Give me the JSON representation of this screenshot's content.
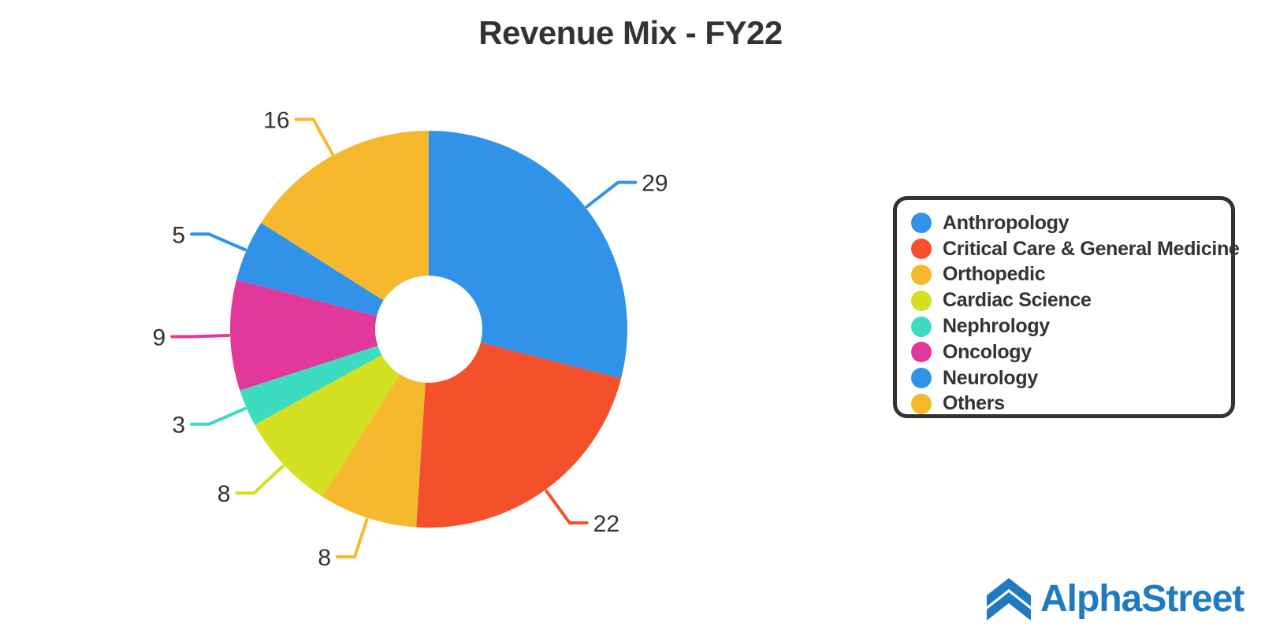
{
  "chart_data": {
    "type": "pie",
    "title": "Revenue Mix - FY22",
    "categories": [
      "Anthropology",
      "Critical Care & General Medicine",
      "Orthopedic",
      "Cardiac Science",
      "Nephrology",
      "Oncology",
      "Neurology",
      "Others"
    ],
    "values": [
      29,
      22,
      8,
      8,
      3,
      9,
      5,
      16
    ],
    "colors": [
      "#3093E8",
      "#F5502C",
      "#F6B92E",
      "#D4E022",
      "#3DDCC1",
      "#E3389B",
      "#3093E8",
      "#F6B92E"
    ],
    "donut": true,
    "legend_position": "right"
  },
  "logo": {
    "text": "AlphaStreet",
    "icon": "alphastreet-chevron-logo",
    "color": "#1F7AC0"
  }
}
